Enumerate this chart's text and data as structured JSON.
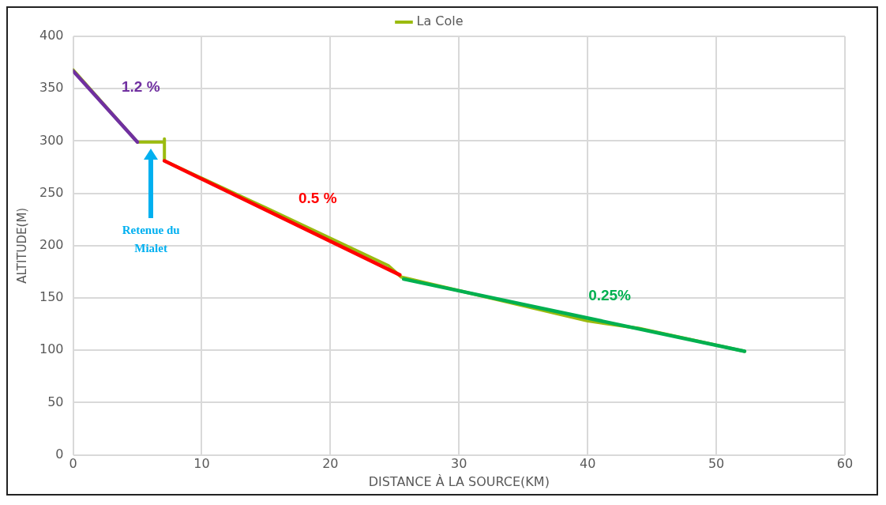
{
  "chart_data": {
    "type": "line",
    "xlabel": "DISTANCE À LA SOURCE(KM)",
    "ylabel": "ALTITUDE(M)",
    "xlim": [
      0,
      60
    ],
    "xticks": [
      0,
      10,
      20,
      30,
      40,
      50,
      60
    ],
    "ylim": [
      0,
      400
    ],
    "yticks": [
      0,
      50,
      100,
      150,
      200,
      250,
      300,
      350,
      400
    ],
    "grid": true,
    "legend": "top",
    "marker": "none",
    "line_style": "solid",
    "series": [
      {
        "name": "La Cole",
        "color": "#9bbb0f",
        "x": [
          0,
          5,
          7.1,
          7.1,
          7.1,
          15,
          24.5,
          25.5,
          30,
          40,
          44,
          52.2
        ],
        "values": [
          368,
          299,
          299,
          302,
          281,
          236,
          181,
          170,
          157,
          128,
          121,
          99
        ]
      },
      {
        "color": "#7030a0",
        "x": [
          0,
          5
        ],
        "values": [
          367,
          299
        ]
      },
      {
        "color": "#ff0000",
        "x": [
          7.1,
          25.4
        ],
        "values": [
          281,
          172
        ]
      },
      {
        "color": "#00b050",
        "x": [
          25.7,
          52.2
        ],
        "values": [
          168,
          99
        ]
      }
    ],
    "annotations": [
      "1.2 %",
      "0.5 %",
      "0.25%",
      "Retenue du Mialet"
    ]
  }
}
